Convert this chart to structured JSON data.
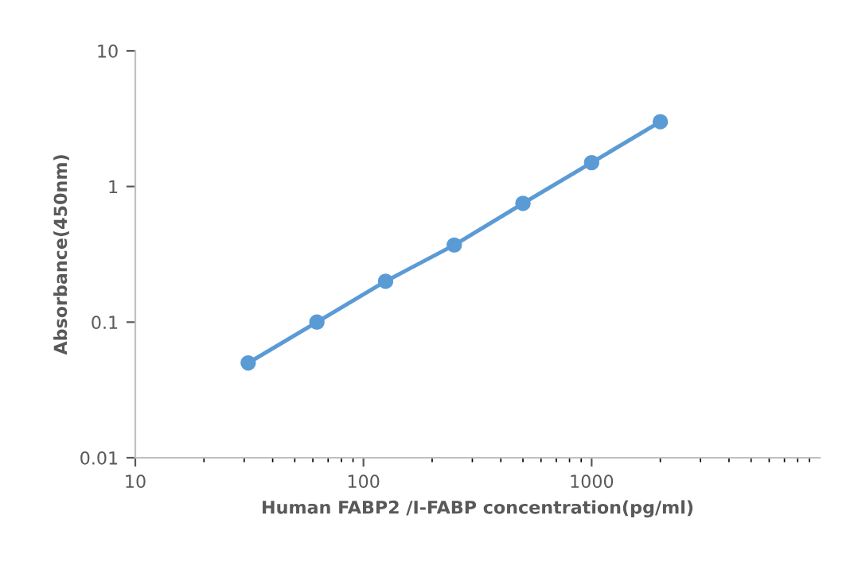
{
  "chart_data": {
    "type": "line",
    "xlabel": "Human FABP2 /I-FABP concentration(pg/ml)",
    "ylabel": "Absorbance(450nm)",
    "x": [
      31.25,
      62.5,
      125,
      250,
      500,
      1000,
      2000
    ],
    "series": [
      {
        "color": "#5b9bd5",
        "values": [
          0.05,
          0.1,
          0.2,
          0.37,
          0.75,
          1.5,
          3.0
        ]
      }
    ],
    "log": "xy",
    "xlim": [
      10,
      10000
    ],
    "xticks": [
      10,
      100,
      1000
    ],
    "ylim": [
      0.01,
      10
    ],
    "yticks": [
      0.01,
      0.1,
      1,
      10
    ],
    "grid": false,
    "legend": false,
    "marker": "circle",
    "line_style": "solid"
  }
}
